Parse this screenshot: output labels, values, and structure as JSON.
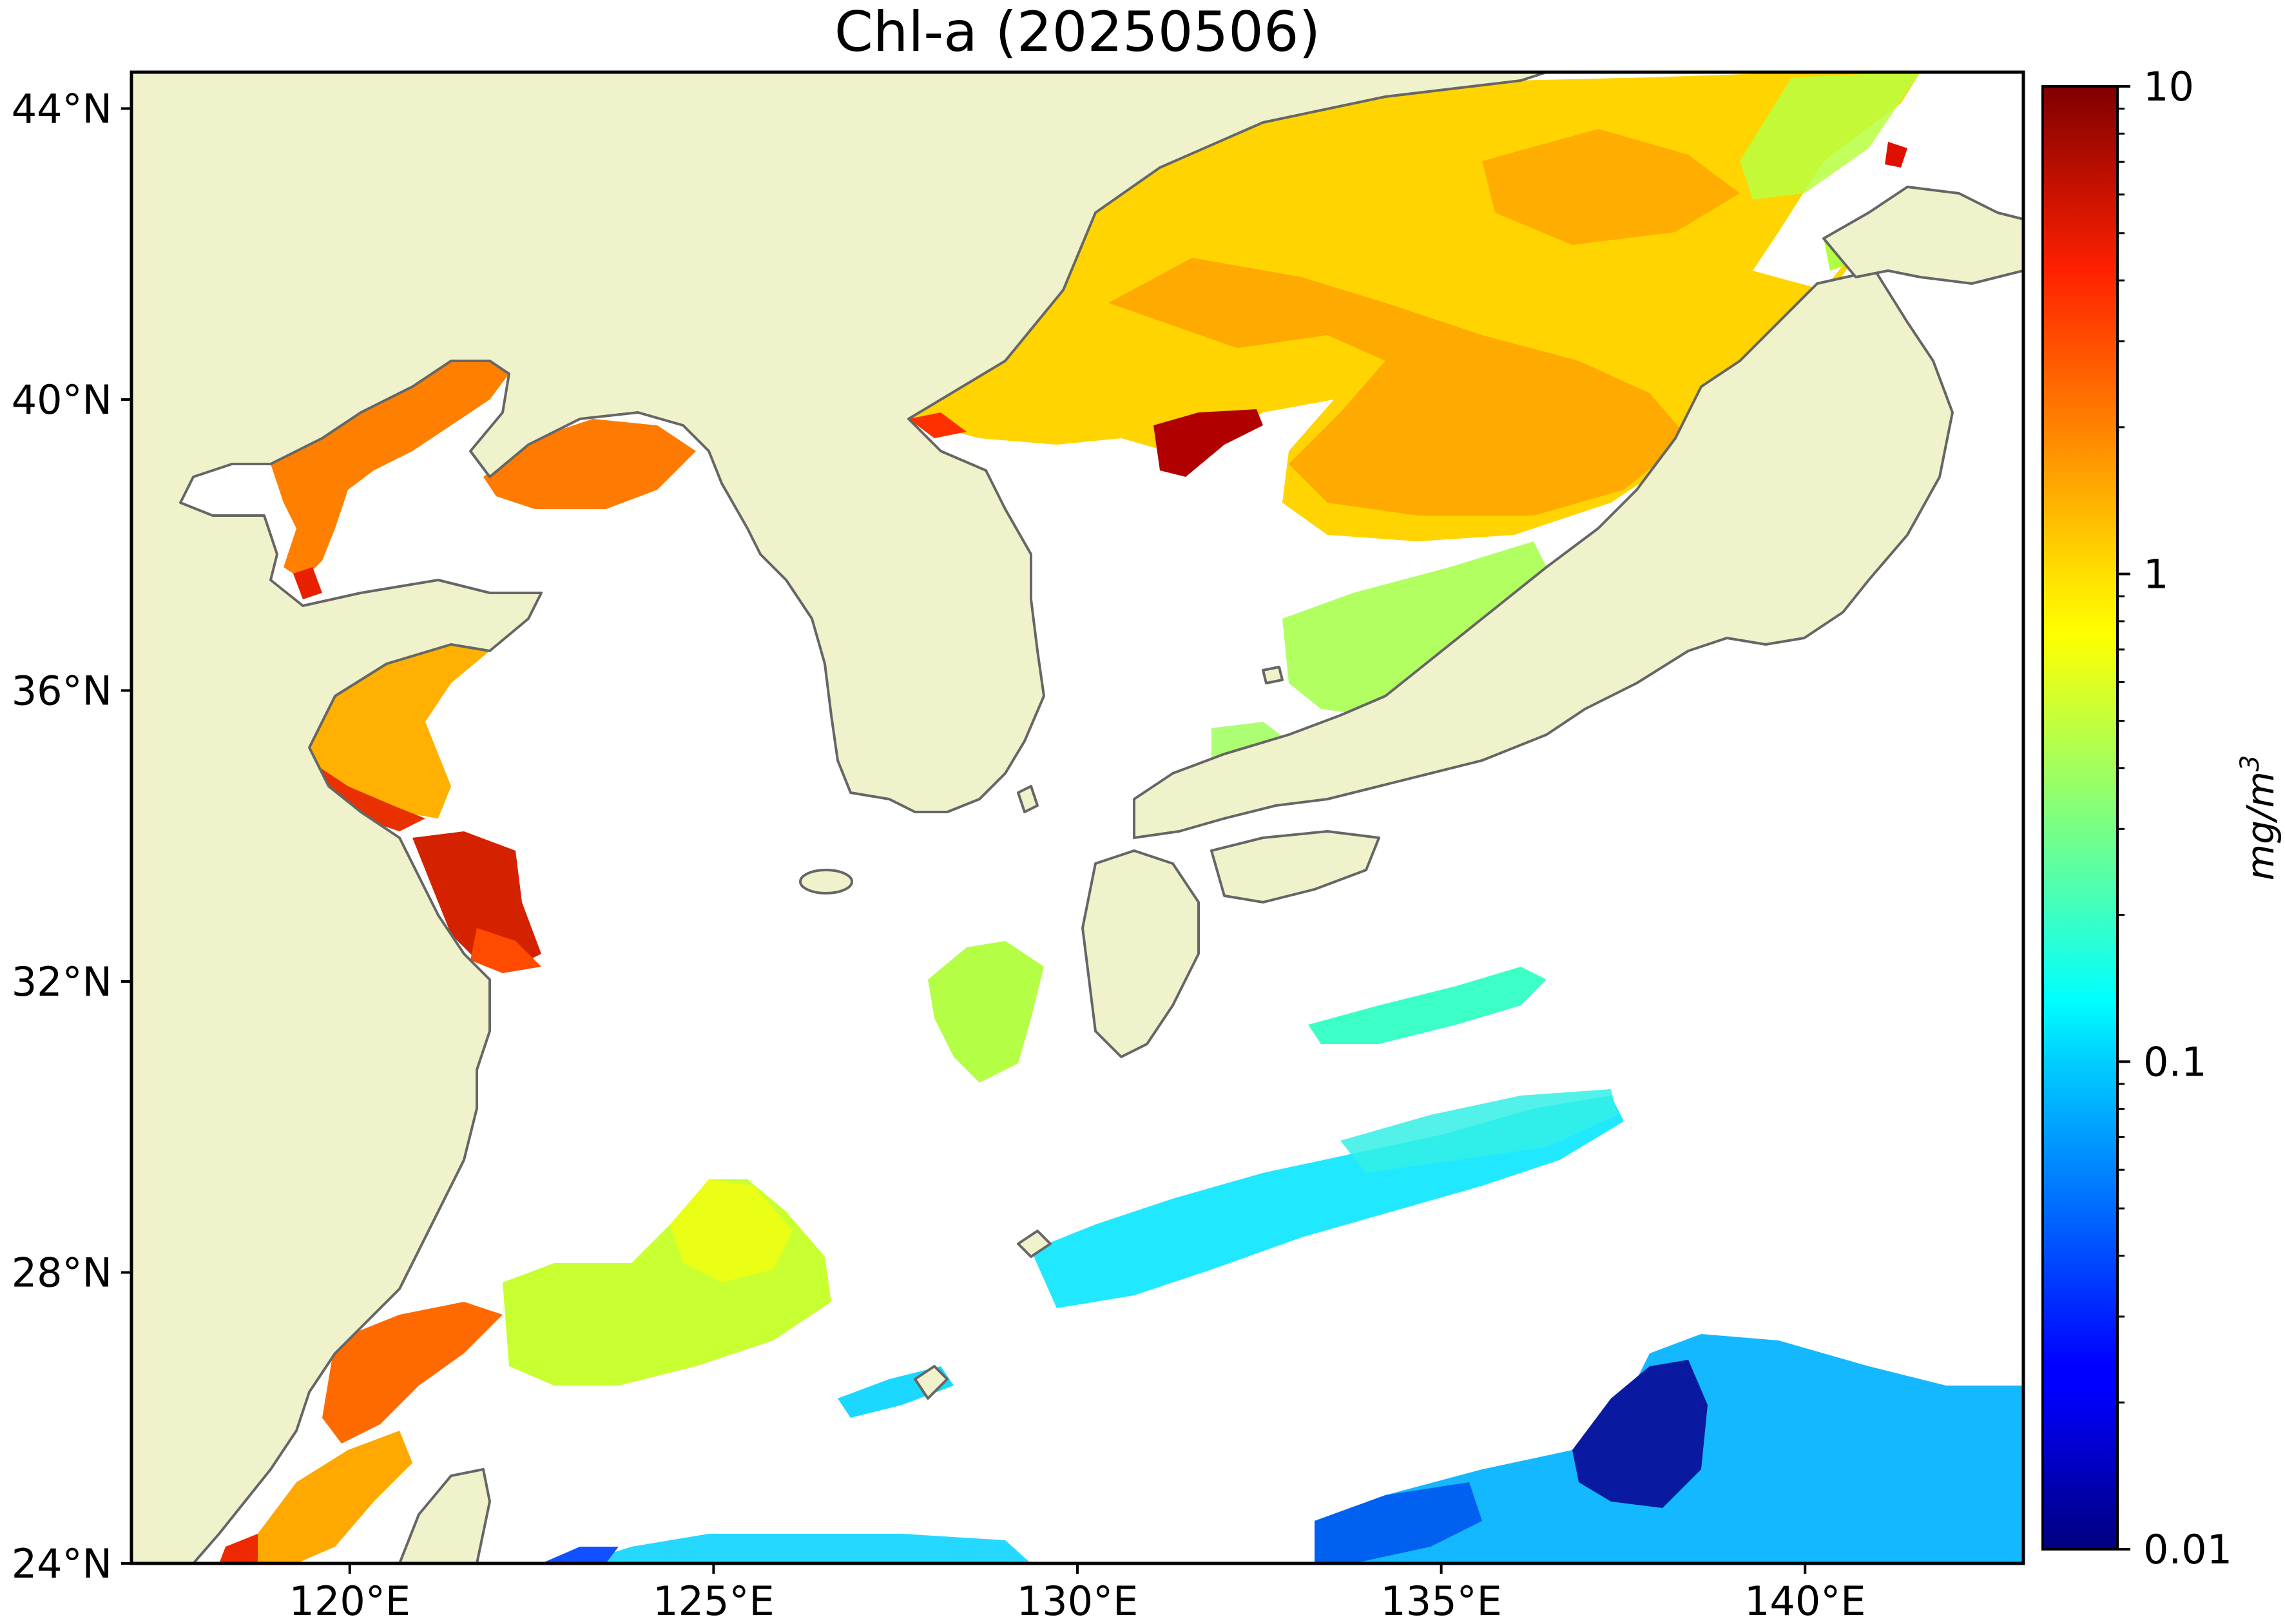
{
  "figure": {
    "title": "Chl-a (20250506)"
  },
  "map": {
    "lon_range": [
      117,
      143
    ],
    "lat_range": [
      24,
      44.5
    ],
    "lon_ticks": [
      {
        "value": 120,
        "label": "120°E"
      },
      {
        "value": 125,
        "label": "125°E"
      },
      {
        "value": 130,
        "label": "130°E"
      },
      {
        "value": 135,
        "label": "135°E"
      },
      {
        "value": 140,
        "label": "140°E"
      }
    ],
    "lat_ticks": [
      {
        "value": 24,
        "label": "24°N"
      },
      {
        "value": 28,
        "label": "28°N"
      },
      {
        "value": 32,
        "label": "32°N"
      },
      {
        "value": 36,
        "label": "36°N"
      },
      {
        "value": 40,
        "label": "40°N"
      },
      {
        "value": 44,
        "label": "44°N"
      }
    ],
    "colors": {
      "land": "#f0f2cb",
      "no_data": "#ffffff",
      "coastline": "#666666"
    }
  },
  "colorbar": {
    "scale": "log",
    "range": [
      0.01,
      10
    ],
    "unit_base": "mg/m",
    "unit_exp": "3",
    "colormap": "jet",
    "ticks": [
      {
        "value": 10,
        "label": "10"
      },
      {
        "value": 1,
        "label": "1"
      },
      {
        "value": 0.1,
        "label": "0.1"
      },
      {
        "value": 0.01,
        "label": "0.01"
      }
    ],
    "minor_ticks": [
      0.02,
      0.03,
      0.04,
      0.05,
      0.06,
      0.07,
      0.08,
      0.09,
      0.2,
      0.3,
      0.4,
      0.5,
      0.6,
      0.7,
      0.8,
      0.9,
      2,
      3,
      4,
      5,
      6,
      7,
      8,
      9
    ]
  }
}
